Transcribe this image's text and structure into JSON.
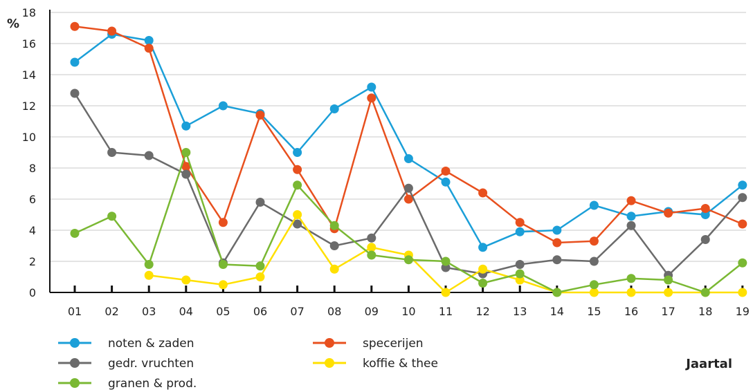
{
  "chart_data": {
    "type": "line",
    "ylabel": "%",
    "xlabel": "Jaartal",
    "ylim": [
      0,
      18
    ],
    "y_ticks": [
      "0",
      "2",
      "4",
      "6",
      "8",
      "10",
      "12",
      "14",
      "16",
      "18"
    ],
    "categories": [
      "01",
      "02",
      "03",
      "04",
      "05",
      "06",
      "07",
      "08",
      "09",
      "10",
      "11",
      "12",
      "13",
      "14",
      "15",
      "16",
      "17",
      "18",
      "19"
    ],
    "grid": "horizontal",
    "legend_position": "bottom",
    "series": [
      {
        "name": "noten & zaden",
        "color": "#1b9fd8",
        "values": [
          14.8,
          16.6,
          16.2,
          10.7,
          12.0,
          11.5,
          9.0,
          11.8,
          13.2,
          8.6,
          7.1,
          2.9,
          3.9,
          4.0,
          5.6,
          4.9,
          5.2,
          5.0,
          6.9
        ]
      },
      {
        "name": "specerijen",
        "color": "#e8501e",
        "values": [
          17.1,
          16.8,
          15.7,
          8.1,
          4.5,
          11.4,
          7.9,
          4.1,
          12.5,
          6.0,
          7.8,
          6.4,
          4.5,
          3.2,
          3.3,
          5.9,
          5.1,
          5.4,
          4.4
        ]
      },
      {
        "name": "gedr. vruchten",
        "color": "#6b6b6b",
        "values": [
          12.8,
          9.0,
          8.8,
          7.6,
          1.9,
          5.8,
          4.4,
          3.0,
          3.5,
          6.7,
          1.6,
          1.2,
          1.8,
          2.1,
          2.0,
          4.3,
          1.1,
          3.4,
          6.1
        ]
      },
      {
        "name": "koffie & thee",
        "color": "#ffe000",
        "values": [
          null,
          null,
          1.1,
          0.8,
          0.5,
          1.0,
          5.0,
          1.5,
          2.9,
          2.4,
          0.0,
          1.5,
          0.8,
          0.0,
          0.0,
          0.0,
          0.0,
          0.0,
          0.0
        ]
      },
      {
        "name": "granen & prod.",
        "color": "#7ab833",
        "values": [
          3.8,
          4.9,
          1.8,
          9.0,
          1.8,
          1.7,
          6.9,
          4.3,
          2.4,
          2.1,
          2.0,
          0.6,
          1.2,
          0.0,
          0.5,
          0.9,
          0.8,
          0.0,
          1.9
        ]
      }
    ],
    "legend": [
      {
        "name": "noten & zaden",
        "color": "#1b9fd8"
      },
      {
        "name": "specerijen",
        "color": "#e8501e"
      },
      {
        "name": "gedr. vruchten",
        "color": "#6b6b6b"
      },
      {
        "name": "koffie & thee",
        "color": "#ffe000"
      },
      {
        "name": "granen & prod.",
        "color": "#7ab833"
      }
    ]
  }
}
